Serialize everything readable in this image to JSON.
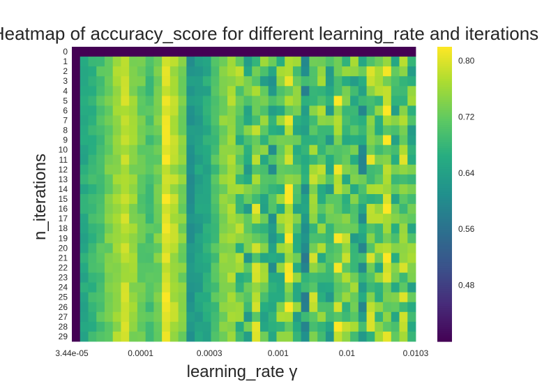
{
  "chart_data": {
    "type": "heatmap",
    "title": "Heatmap of accuracy_score for different learning_rate and iterations",
    "xlabel": "learning_rate γ",
    "ylabel": "n_iterations",
    "y_categories": [
      "0",
      "1",
      "2",
      "3",
      "4",
      "5",
      "6",
      "7",
      "8",
      "9",
      "10",
      "11",
      "12",
      "13",
      "14",
      "15",
      "16",
      "17",
      "18",
      "19",
      "20",
      "21",
      "22",
      "23",
      "24",
      "25",
      "26",
      "27",
      "28",
      "29"
    ],
    "x_tick_labels": [
      "3.44e-05",
      "0.0001",
      "0.0003",
      "0.001",
      "0.01",
      "0.0103"
    ],
    "n_x_columns": 42,
    "colorbar": {
      "colormap": "viridis",
      "range": [
        0.4,
        0.82
      ],
      "ticks": [
        "0.48",
        "0.56",
        "0.64",
        "0.72",
        "0.80"
      ]
    },
    "column_profile_estimate": [
      0.4,
      0.66,
      0.68,
      0.7,
      0.73,
      0.76,
      0.78,
      0.75,
      0.72,
      0.7,
      0.73,
      0.8,
      0.77,
      0.74,
      0.62,
      0.64,
      0.66,
      0.7,
      0.74,
      0.76,
      0.72,
      0.68,
      0.74,
      0.7,
      0.66,
      0.72,
      0.78,
      0.7,
      0.64,
      0.74,
      0.72,
      0.68,
      0.76,
      0.72,
      0.7,
      0.66,
      0.74,
      0.72,
      0.78,
      0.7,
      0.74,
      0.7
    ],
    "notes_visible": "row 0 and first column are dark (~0.40)"
  }
}
